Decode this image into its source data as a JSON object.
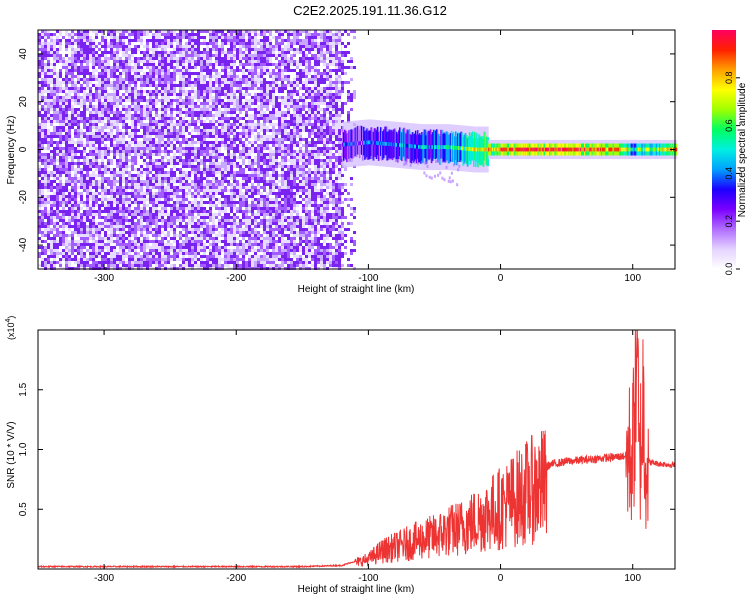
{
  "title": "C2E2.2025.191.11.36.G12",
  "chart_data": [
    {
      "type": "heatmap",
      "xlabel": "Height of straight line (km)",
      "ylabel": "Frequency (Hz)",
      "xlim": [
        -350,
        132
      ],
      "ylim": [
        -50,
        50
      ],
      "xticks": [
        "-300",
        "-200",
        "-100",
        "0",
        "100"
      ],
      "yticks": [
        "40",
        "20",
        "0",
        "-20",
        "-40"
      ],
      "colorbar": {
        "label": "Normalized spectral amplitude",
        "range": [
          0,
          1
        ],
        "ticks": [
          "0.0",
          "0.2",
          "0.4",
          "0.6",
          "0.8"
        ],
        "colors": [
          "#ffffff",
          "#e4d2ff",
          "#b06cff",
          "#7a00ff",
          "#1b00ff",
          "#00a0ff",
          "#00f0e0",
          "#00ff60",
          "#a0ff00",
          "#ffff00",
          "#ffa000",
          "#ff2000",
          "#ff0060"
        ]
      },
      "noise_region": {
        "x": [
          -350,
          -120
        ],
        "amplitude": 0.15
      },
      "signal_ridge": [
        {
          "x": -120,
          "f": 2,
          "amplitude": 0.35
        },
        {
          "x": -100,
          "f": 3,
          "amplitude": 0.4
        },
        {
          "x": -80,
          "f": 2,
          "amplitude": 0.45
        },
        {
          "x": -60,
          "f": 1,
          "amplitude": 0.5
        },
        {
          "x": -40,
          "f": 1,
          "amplitude": 0.55
        },
        {
          "x": -20,
          "f": 0,
          "amplitude": 0.75
        },
        {
          "x": 0,
          "f": 0,
          "amplitude": 0.95
        },
        {
          "x": 50,
          "f": 0,
          "amplitude": 1.0
        },
        {
          "x": 90,
          "f": 0,
          "amplitude": 0.9
        },
        {
          "x": 100,
          "f": 0,
          "amplitude": 0.6
        },
        {
          "x": 132,
          "f": 0,
          "amplitude": 0.9
        }
      ]
    },
    {
      "type": "line",
      "xlabel": "Height of straight line (km)",
      "ylabel": "SNR (10 * V/V)",
      "y_multiplier": "(x10",
      "y_multiplier_exp": "4",
      "y_multiplier_close": ")",
      "xlim": [
        -350,
        132
      ],
      "ylim": [
        0,
        2.0
      ],
      "xticks": [
        "-300",
        "-200",
        "-100",
        "0",
        "100"
      ],
      "yticks": [
        "0.5",
        "1.0",
        "1.5"
      ],
      "color": "#ee3333",
      "series": [
        {
          "x": [
            -350,
            -300,
            -250,
            -200,
            -150,
            -120,
            -100,
            -90,
            -80,
            -70,
            -60,
            -50,
            -40,
            -30,
            -20,
            -10,
            0,
            10,
            20,
            30,
            40,
            50,
            60,
            70,
            80,
            90,
            95,
            100,
            103,
            105,
            108,
            110,
            120,
            132
          ],
          "values": [
            0.02,
            0.02,
            0.02,
            0.02,
            0.02,
            0.03,
            0.1,
            0.18,
            0.22,
            0.26,
            0.3,
            0.33,
            0.38,
            0.42,
            0.48,
            0.55,
            0.62,
            0.7,
            0.78,
            0.84,
            0.88,
            0.9,
            0.91,
            0.92,
            0.93,
            0.94,
            0.95,
            0.98,
            1.9,
            0.85,
            1.4,
            0.9,
            0.88,
            0.87
          ]
        }
      ]
    }
  ]
}
